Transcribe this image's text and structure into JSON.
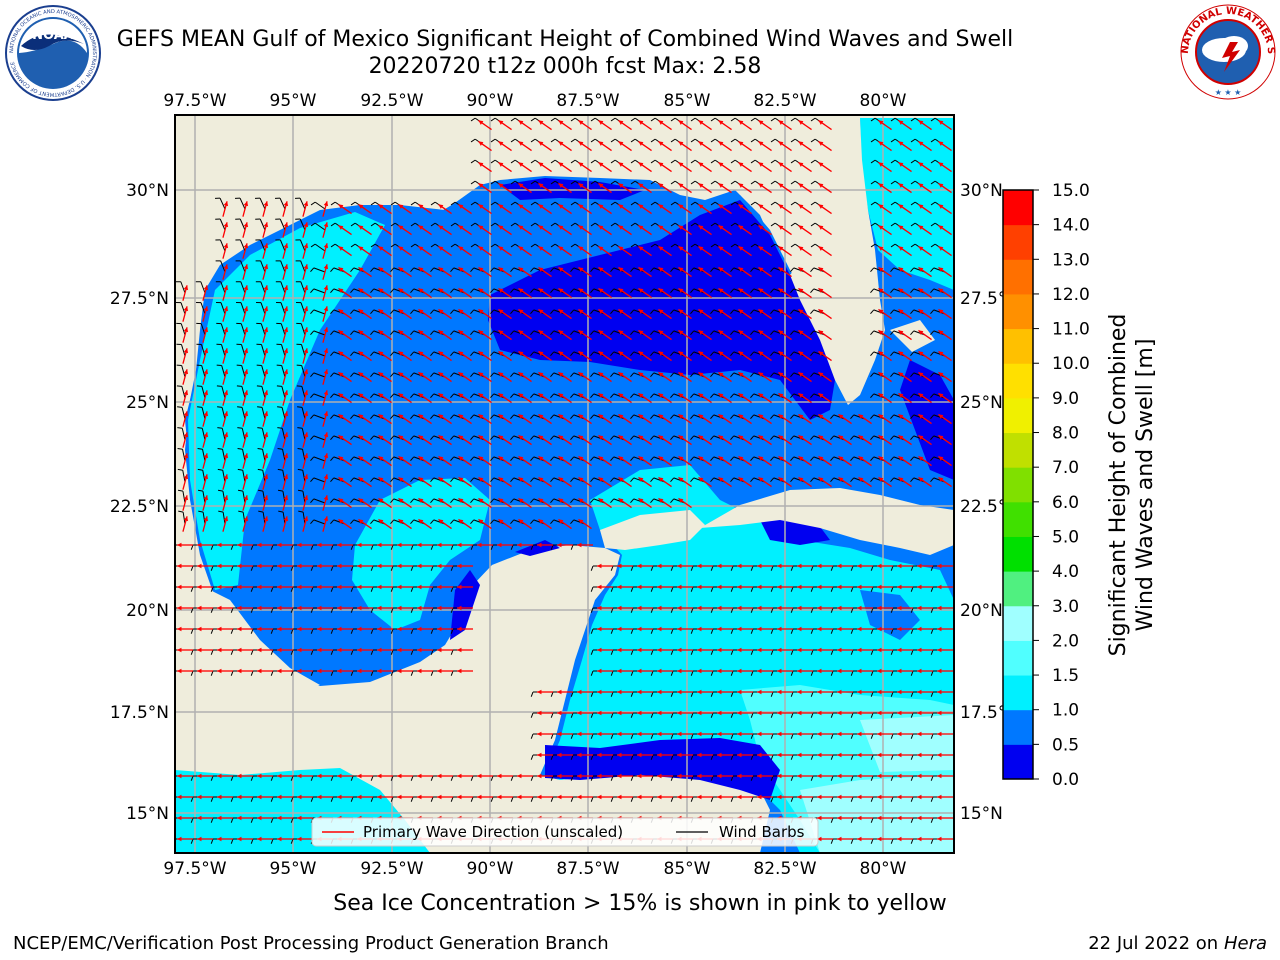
{
  "header": {
    "title_line1": "GEFS MEAN Gulf of Mexico Significant Height of Combined Wind Waves and Swell",
    "title_line2": "20220720 t12z 000h fcst   Max: 2.58"
  },
  "logos": {
    "noaa": {
      "text": "NOAA",
      "ring_text": "NATIONAL OCEANIC AND ATMOSPHERIC ADMINISTRATION · U.S. DEPARTMENT OF COMMERCE"
    },
    "nws": {
      "ring_text": "NATIONAL WEATHER SERVICE"
    }
  },
  "map": {
    "lon_labels": [
      "97.5°W",
      "95°W",
      "92.5°W",
      "90°W",
      "87.5°W",
      "85°W",
      "82.5°W",
      "80°W"
    ],
    "lat_labels": [
      "30°N",
      "27.5°N",
      "25°N",
      "22.5°N",
      "20°N",
      "17.5°N",
      "15°N"
    ],
    "legend": {
      "wave_direction": "Primary Wave Direction (unscaled)",
      "wind_barbs": "Wind Barbs"
    }
  },
  "colorbar": {
    "label_line1": "Significant Height of Combined",
    "label_line2": "Wind Waves and Swell [m]",
    "ticks": [
      "0.0",
      "0.5",
      "1.0",
      "1.5",
      "2.0",
      "3.0",
      "4.0",
      "5.0",
      "6.0",
      "7.0",
      "8.0",
      "9.0",
      "10.0",
      "11.0",
      "12.0",
      "13.0",
      "14.0",
      "15.0"
    ],
    "colors": [
      "#0000f0",
      "#0078ff",
      "#00f0ff",
      "#50ffff",
      "#a0ffff",
      "#50f080",
      "#00e000",
      "#40e000",
      "#80e000",
      "#c0e000",
      "#f0f000",
      "#ffe000",
      "#ffc000",
      "#ff9000",
      "#ff7000",
      "#ff4000",
      "#ff0000"
    ]
  },
  "footer": {
    "note": "Sea Ice Concentration > 15% is shown in pink to yellow",
    "credit": "NCEP/EMC/Verification Post Processing Product Generation Branch",
    "date": "22 Jul 2022 on ",
    "host": "Hera"
  },
  "colors": {
    "land": "#efeddc",
    "wave_arrow": "#ff0000",
    "barb": "#000000",
    "grid": "#b0b0b0"
  }
}
